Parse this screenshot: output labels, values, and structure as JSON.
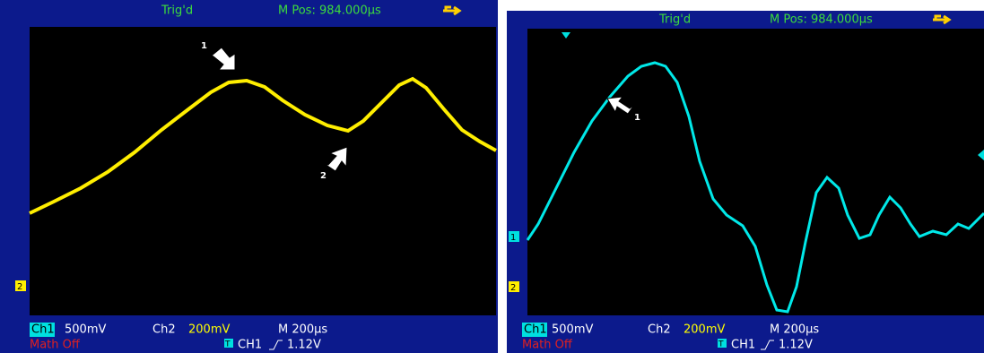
{
  "panels": [
    {
      "trig_status": "Trig'd",
      "m_pos": "M Pos: 984.000µs",
      "ch1_label": "Ch1",
      "ch1_scale": "500mV",
      "ch2_label": "Ch2",
      "ch2_scale": "200mV",
      "timebase": "M 200µs",
      "math": "Math Off",
      "trigger_icon": "T",
      "trigger_source": "CH1",
      "trigger_level": "1.12V",
      "channel_marker": "2",
      "arrows": [
        "1",
        "2"
      ]
    },
    {
      "trig_status": "Trig'd",
      "m_pos": "M Pos: 984.000µs",
      "ch1_label": "Ch1",
      "ch1_scale": "500mV",
      "ch2_label": "Ch2",
      "ch2_scale": "200mV",
      "timebase": "M 200µs",
      "math": "Math Off",
      "trigger_icon": "T",
      "trigger_source": "CH1",
      "trigger_level": "1.12V",
      "channel_markers": [
        "1",
        "2"
      ],
      "arrows": [
        "1"
      ]
    }
  ]
}
